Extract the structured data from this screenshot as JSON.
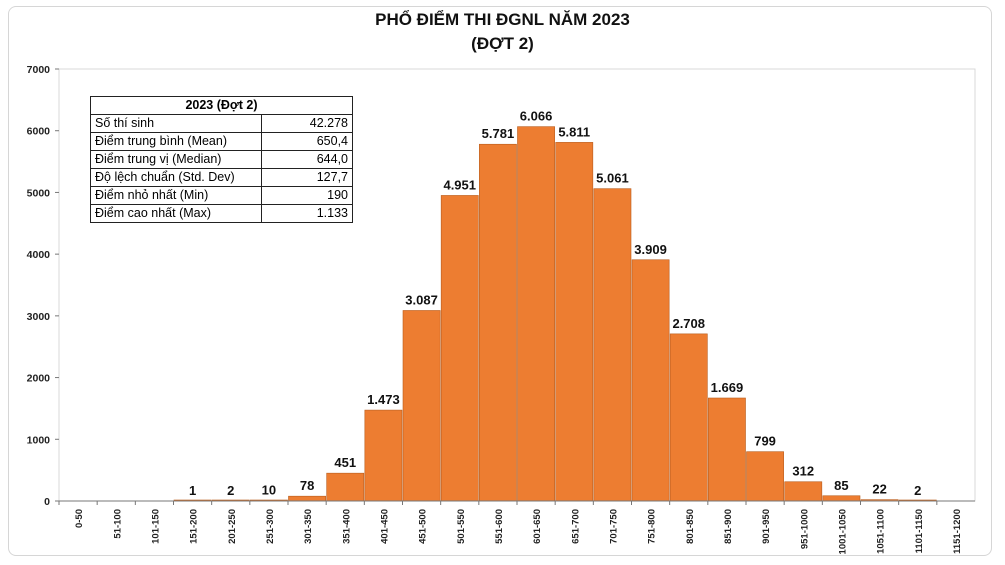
{
  "title_line1": "PHỔ ĐIỂM THI ĐGNL NĂM 2023",
  "title_line2": "(ĐỢT 2)",
  "stats_table": {
    "header": "2023 (Đợt 2)",
    "rows": [
      {
        "label": "Số thí sinh",
        "value": "42.278"
      },
      {
        "label": "Điểm trung bình (Mean)",
        "value": "650,4"
      },
      {
        "label": "Điểm trung vị (Median)",
        "value": "644,0"
      },
      {
        "label": "Độ lệch chuẩn (Std. Dev)",
        "value": "127,7"
      },
      {
        "label": "Điểm nhỏ nhất (Min)",
        "value": "190"
      },
      {
        "label": "Điểm cao nhất (Max)",
        "value": "1.133"
      }
    ]
  },
  "colors": {
    "bar": "#ed7d31",
    "bar_border": "#b85c1c",
    "grid": "#d9d9d9"
  },
  "chart_data": {
    "type": "bar",
    "categories": [
      "0-50",
      "51-100",
      "101-150",
      "151-200",
      "201-250",
      "251-300",
      "301-350",
      "351-400",
      "401-450",
      "451-500",
      "501-550",
      "551-600",
      "601-650",
      "651-700",
      "701-750",
      "751-800",
      "801-850",
      "851-900",
      "901-950",
      "951-1000",
      "1001-1050",
      "1051-1100",
      "1101-1150",
      "1151-1200"
    ],
    "values": [
      0,
      0,
      0,
      1,
      2,
      10,
      78,
      451,
      1473,
      3087,
      4951,
      5781,
      6066,
      5811,
      5061,
      3909,
      2708,
      1669,
      799,
      312,
      85,
      22,
      2,
      0
    ],
    "data_labels": [
      "",
      "",
      "",
      "1",
      "2",
      "10",
      "78",
      "451",
      "1.473",
      "3.087",
      "4.951",
      "5.781",
      "6.066",
      "5.811",
      "5.061",
      "3.909",
      "2.708",
      "1.669",
      "799",
      "312",
      "85",
      "22",
      "2",
      ""
    ],
    "yticks": [
      0,
      1000,
      2000,
      3000,
      4000,
      5000,
      6000,
      7000
    ],
    "ylim": [
      0,
      7000
    ],
    "grid": false,
    "legend": "none"
  }
}
